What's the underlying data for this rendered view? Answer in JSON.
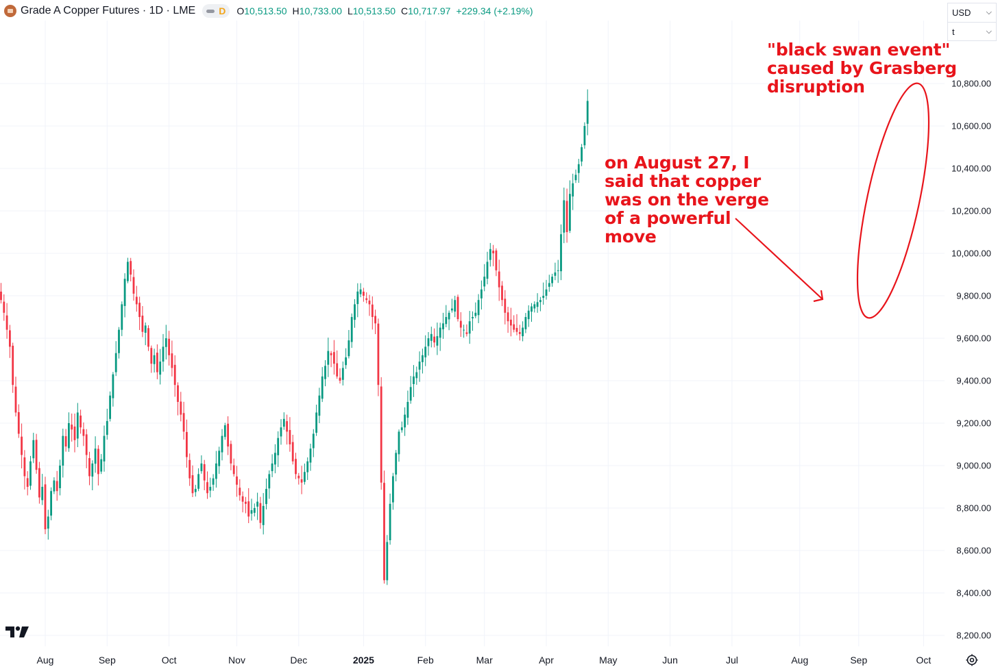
{
  "legend": {
    "title": "Grade A Copper Futures · 1D · LME",
    "interval_badge": "D",
    "open_label": "O",
    "open": "10,513.50",
    "high_label": "H",
    "high": "10,733.00",
    "low_label": "L",
    "low": "10,513.50",
    "close_label": "C",
    "close": "10,717.97",
    "change": "+229.34 (+2.19%)"
  },
  "currency": {
    "value": "USD",
    "unit": "t"
  },
  "annotations": {
    "top": [
      "\"black swan event\"",
      "caused by Grasberg",
      "disruption"
    ],
    "mid": [
      "on August 27, I",
      "said that copper",
      "was on the verge",
      "of a powerful",
      "move"
    ]
  },
  "colors": {
    "up": "#089981",
    "down": "#f23645",
    "annotation": "#e8141b",
    "grid": "#f0f3fa"
  },
  "chart_data": {
    "type": "candlestick",
    "title": "Grade A Copper Futures · 1D · LME",
    "ylim": [
      8170,
      11040
    ],
    "yticks": [
      8200,
      8400,
      8600,
      8800,
      9000,
      9200,
      9400,
      9600,
      9800,
      10000,
      10200,
      10400,
      10600,
      10800
    ],
    "ytick_labels": [
      "8,200.00",
      "8,400.00",
      "8,600.00",
      "8,800.00",
      "9,000.00",
      "9,200.00",
      "9,400.00",
      "9,600.00",
      "9,800.00",
      "10,000.00",
      "10,200.00",
      "10,400.00",
      "10,600.00",
      "10,800.00"
    ],
    "xtick_labels": [
      "Aug",
      "Sep",
      "Oct",
      "Nov",
      "Dec",
      "2025",
      "Feb",
      "Mar",
      "Apr",
      "May",
      "Jun",
      "Jul",
      "Aug",
      "Sep",
      "Oct"
    ],
    "xtick_index": [
      15,
      36,
      57,
      80,
      101,
      123,
      144,
      164,
      185,
      206,
      227,
      248,
      271,
      291,
      313
    ],
    "index_range": [
      0,
      330
    ],
    "closes": [
      9780,
      9720,
      9640,
      9560,
      9380,
      9250,
      9150,
      9050,
      8950,
      8900,
      9020,
      9120,
      8980,
      8850,
      8900,
      8700,
      8760,
      8880,
      8930,
      8880,
      9000,
      9140,
      9090,
      9200,
      9170,
      9120,
      9250,
      9180,
      9140,
      9050,
      8950,
      9010,
      9080,
      8960,
      9030,
      9140,
      9210,
      9330,
      9430,
      9530,
      9640,
      9760,
      9880,
      9960,
      9900,
      9810,
      9760,
      9700,
      9630,
      9660,
      9560,
      9480,
      9520,
      9440,
      9490,
      9560,
      9600,
      9520,
      9460,
      9380,
      9300,
      9240,
      9160,
      9040,
      8940,
      8870,
      8890,
      8960,
      9010,
      8930,
      8870,
      8900,
      8940,
      9010,
      9070,
      9140,
      9190,
      9090,
      9010,
      8960,
      8910,
      8860,
      8830,
      8820,
      8760,
      8790,
      8800,
      8830,
      8730,
      8810,
      8890,
      8960,
      9010,
      9060,
      9130,
      9180,
      9220,
      9160,
      9100,
      9020,
      8960,
      8940,
      8920,
      8970,
      9020,
      9080,
      9150,
      9250,
      9330,
      9420,
      9470,
      9540,
      9520,
      9480,
      9420,
      9400,
      9460,
      9510,
      9590,
      9700,
      9760,
      9820,
      9830,
      9800,
      9780,
      9760,
      9700,
      9670,
      9380,
      8920,
      8460,
      8640,
      8820,
      8950,
      9060,
      9160,
      9180,
      9240,
      9300,
      9370,
      9420,
      9440,
      9490,
      9520,
      9560,
      9600,
      9620,
      9580,
      9610,
      9650,
      9670,
      9700,
      9720,
      9740,
      9780,
      9690,
      9650,
      9640,
      9620,
      9680,
      9700,
      9720,
      9780,
      9830,
      9890,
      9960,
      10020,
      10000,
      9920,
      9840,
      9780,
      9720,
      9680,
      9660,
      9640,
      9630,
      9620,
      9650,
      9700,
      9730,
      9750,
      9760,
      9770,
      9780,
      9800,
      9830,
      9860,
      9890,
      9910,
      9920,
      10090,
      10250,
      10100,
      10280,
      10330,
      10370,
      10420,
      10500,
      10600,
      10718
    ]
  }
}
